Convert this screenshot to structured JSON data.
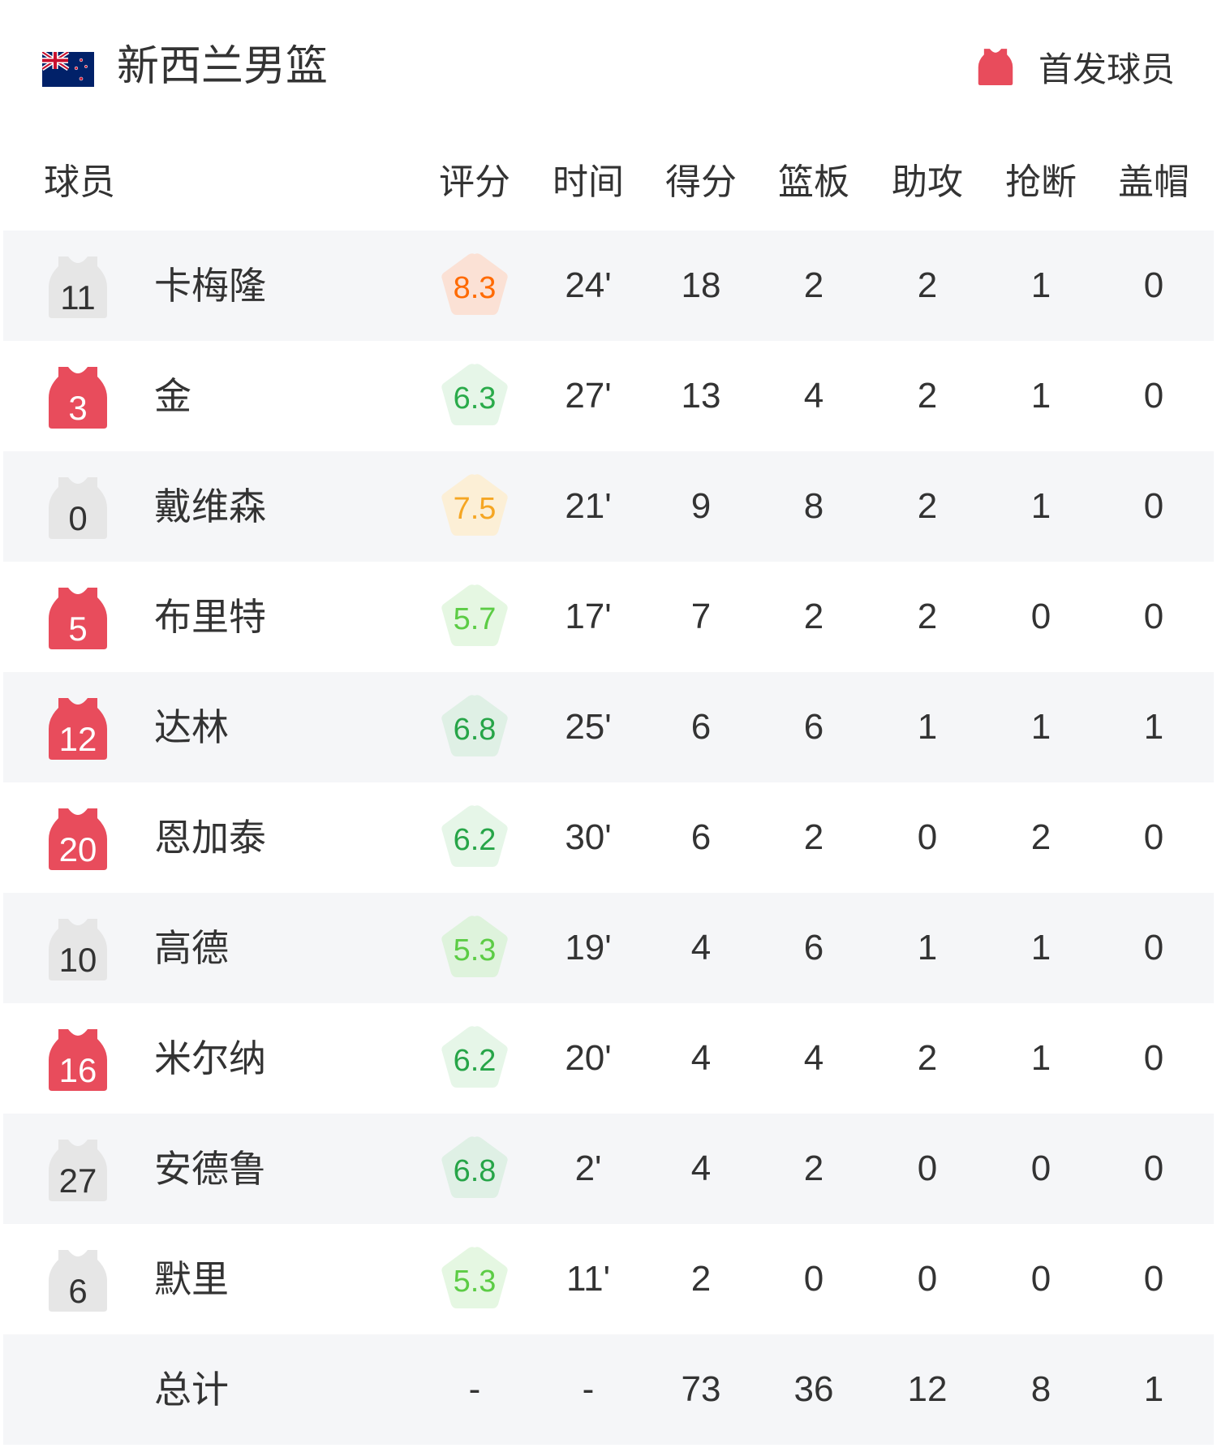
{
  "header": {
    "team_name": "新西兰男篮",
    "flag_icon": "new-zealand-flag-icon",
    "legend_label": "首发球员",
    "legend_icon": "jersey-icon",
    "starter_color": "#e84c5c",
    "bench_color": "#e6e6e6"
  },
  "columns": [
    "球员",
    "评分",
    "时间",
    "得分",
    "篮板",
    "助攻",
    "抢断",
    "盖帽"
  ],
  "players": [
    {
      "number": "11",
      "name": "卡梅隆",
      "starter": false,
      "rating": "8.3",
      "rating_color": "#ff6a00",
      "rating_bg": "#fbe1d5",
      "time": "24'",
      "points": "18",
      "rebounds": "2",
      "assists": "2",
      "steals": "1",
      "blocks": "0"
    },
    {
      "number": "3",
      "name": "金",
      "starter": true,
      "rating": "6.3",
      "rating_color": "#2aab4a",
      "rating_bg": "#e6f6e8",
      "time": "27'",
      "points": "13",
      "rebounds": "4",
      "assists": "2",
      "steals": "1",
      "blocks": "0"
    },
    {
      "number": "0",
      "name": "戴维森",
      "starter": false,
      "rating": "7.5",
      "rating_color": "#f5a623",
      "rating_bg": "#fcefd6",
      "time": "21'",
      "points": "9",
      "rebounds": "8",
      "assists": "2",
      "steals": "1",
      "blocks": "0"
    },
    {
      "number": "5",
      "name": "布里特",
      "starter": true,
      "rating": "5.7",
      "rating_color": "#5ccc45",
      "rating_bg": "#e5f7e2",
      "time": "17'",
      "points": "7",
      "rebounds": "2",
      "assists": "2",
      "steals": "0",
      "blocks": "0"
    },
    {
      "number": "12",
      "name": "达林",
      "starter": true,
      "rating": "6.8",
      "rating_color": "#27a548",
      "rating_bg": "#dff0e5",
      "time": "25'",
      "points": "6",
      "rebounds": "6",
      "assists": "1",
      "steals": "1",
      "blocks": "1"
    },
    {
      "number": "20",
      "name": "恩加泰",
      "starter": true,
      "rating": "6.2",
      "rating_color": "#27a548",
      "rating_bg": "#e6f6e8",
      "time": "30'",
      "points": "6",
      "rebounds": "2",
      "assists": "0",
      "steals": "2",
      "blocks": "0"
    },
    {
      "number": "10",
      "name": "高德",
      "starter": false,
      "rating": "5.3",
      "rating_color": "#5ccc45",
      "rating_bg": "#def3dc",
      "time": "19'",
      "points": "4",
      "rebounds": "6",
      "assists": "1",
      "steals": "1",
      "blocks": "0"
    },
    {
      "number": "16",
      "name": "米尔纳",
      "starter": true,
      "rating": "6.2",
      "rating_color": "#27a548",
      "rating_bg": "#e6f6e8",
      "time": "20'",
      "points": "4",
      "rebounds": "4",
      "assists": "2",
      "steals": "1",
      "blocks": "0"
    },
    {
      "number": "27",
      "name": "安德鲁",
      "starter": false,
      "rating": "6.8",
      "rating_color": "#27a548",
      "rating_bg": "#dff0e5",
      "time": "2'",
      "points": "4",
      "rebounds": "2",
      "assists": "0",
      "steals": "0",
      "blocks": "0"
    },
    {
      "number": "6",
      "name": "默里",
      "starter": false,
      "rating": "5.3",
      "rating_color": "#5ccc45",
      "rating_bg": "#e5f7e2",
      "time": "11'",
      "points": "2",
      "rebounds": "0",
      "assists": "0",
      "steals": "0",
      "blocks": "0"
    }
  ],
  "totals": {
    "label": "总计",
    "rating": "-",
    "time": "-",
    "points": "73",
    "rebounds": "36",
    "assists": "12",
    "steals": "8",
    "blocks": "1"
  }
}
